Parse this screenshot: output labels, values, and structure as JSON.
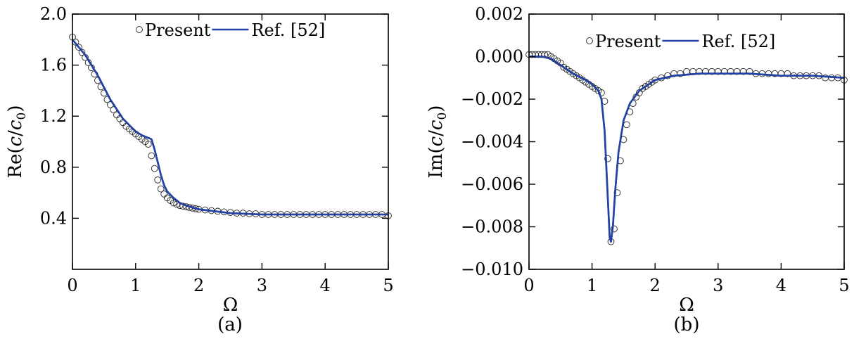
{
  "chart_data": [
    {
      "type": "line",
      "panel_label": "(a)",
      "xlabel": "Ω",
      "ylabel": "Re(c/c0)",
      "ylabel_parts": {
        "pre": "Re(",
        "var": "c",
        "slash": "/",
        "base": "c",
        "sub": "0",
        "post": ")"
      },
      "xlim": [
        0,
        5
      ],
      "ylim": [
        0.0,
        2.0
      ],
      "xticks": [
        0,
        1,
        2,
        3,
        4,
        5
      ],
      "xtick_labels": [
        "0",
        "1",
        "2",
        "3",
        "4",
        "5"
      ],
      "yticks": [
        0.4,
        0.8,
        1.2,
        1.6,
        2.0
      ],
      "ytick_labels": [
        "0.4",
        "0.8",
        "1.2",
        "1.6",
        "2.0"
      ],
      "legend_position": "top-right",
      "series": [
        {
          "name": "Present",
          "style": "open-circle-markers",
          "color": "#222222",
          "x": [
            0,
            0.05,
            0.1,
            0.15,
            0.2,
            0.25,
            0.3,
            0.35,
            0.4,
            0.45,
            0.5,
            0.55,
            0.6,
            0.65,
            0.7,
            0.75,
            0.8,
            0.85,
            0.9,
            0.95,
            1.0,
            1.05,
            1.1,
            1.15,
            1.2,
            1.25,
            1.3,
            1.35,
            1.4,
            1.45,
            1.5,
            1.55,
            1.6,
            1.65,
            1.7,
            1.75,
            1.8,
            1.85,
            1.9,
            1.95,
            2.0,
            2.1,
            2.2,
            2.3,
            2.4,
            2.5,
            2.6,
            2.7,
            2.8,
            2.9,
            3.0,
            3.1,
            3.2,
            3.3,
            3.4,
            3.5,
            3.6,
            3.7,
            3.8,
            3.9,
            4.0,
            4.1,
            4.2,
            4.3,
            4.4,
            4.5,
            4.6,
            4.7,
            4.8,
            4.9,
            5.0
          ],
          "y": [
            1.82,
            1.78,
            1.74,
            1.7,
            1.66,
            1.62,
            1.58,
            1.53,
            1.48,
            1.43,
            1.38,
            1.33,
            1.29,
            1.25,
            1.21,
            1.18,
            1.15,
            1.12,
            1.1,
            1.08,
            1.06,
            1.04,
            1.02,
            1.0,
            0.98,
            0.89,
            0.79,
            0.7,
            0.63,
            0.59,
            0.56,
            0.54,
            0.52,
            0.51,
            0.5,
            0.495,
            0.49,
            0.485,
            0.48,
            0.475,
            0.47,
            0.465,
            0.46,
            0.455,
            0.45,
            0.445,
            0.44,
            0.44,
            0.435,
            0.435,
            0.43,
            0.43,
            0.43,
            0.43,
            0.43,
            0.43,
            0.43,
            0.43,
            0.43,
            0.43,
            0.43,
            0.43,
            0.43,
            0.43,
            0.43,
            0.43,
            0.43,
            0.43,
            0.43,
            0.43,
            0.42
          ]
        },
        {
          "name": "Ref. [52]",
          "style": "solid-line",
          "color": "#2342a8",
          "x": [
            0,
            0.2,
            0.4,
            0.6,
            0.8,
            1.0,
            1.1,
            1.2,
            1.25,
            1.3,
            1.35,
            1.4,
            1.45,
            1.5,
            1.6,
            1.7,
            1.8,
            2.0,
            2.5,
            3.0,
            3.5,
            4.0,
            4.5,
            5.0
          ],
          "y": [
            1.8,
            1.68,
            1.52,
            1.33,
            1.18,
            1.08,
            1.05,
            1.03,
            1.02,
            0.94,
            0.84,
            0.74,
            0.66,
            0.61,
            0.56,
            0.52,
            0.5,
            0.47,
            0.44,
            0.43,
            0.43,
            0.43,
            0.43,
            0.43
          ]
        }
      ]
    },
    {
      "type": "line",
      "panel_label": "(b)",
      "xlabel": "Ω",
      "ylabel": "Im(c/c0)",
      "ylabel_parts": {
        "pre": "Im(",
        "var": "c",
        "slash": "/",
        "base": "c",
        "sub": "0",
        "post": ")"
      },
      "xlim": [
        0,
        5
      ],
      "ylim": [
        -0.01,
        0.002
      ],
      "xticks": [
        0,
        1,
        2,
        3,
        4,
        5
      ],
      "xtick_labels": [
        "0",
        "1",
        "2",
        "3",
        "4",
        "5"
      ],
      "yticks": [
        -0.01,
        -0.008,
        -0.006,
        -0.004,
        -0.002,
        0.0,
        0.002
      ],
      "ytick_labels": [
        "−0.010",
        "−0.008",
        "−0.006",
        "−0.004",
        "−0.002",
        "0.000",
        "0.002"
      ],
      "legend_position": "top-right",
      "series": [
        {
          "name": "Present",
          "style": "open-circle-markers",
          "color": "#222222",
          "x": [
            0,
            0.05,
            0.1,
            0.15,
            0.2,
            0.25,
            0.3,
            0.35,
            0.4,
            0.45,
            0.5,
            0.55,
            0.6,
            0.65,
            0.7,
            0.75,
            0.8,
            0.85,
            0.9,
            0.95,
            1.0,
            1.05,
            1.1,
            1.15,
            1.2,
            1.25,
            1.3,
            1.35,
            1.4,
            1.45,
            1.5,
            1.55,
            1.6,
            1.65,
            1.7,
            1.75,
            1.8,
            1.85,
            1.9,
            1.95,
            2.0,
            2.1,
            2.2,
            2.3,
            2.4,
            2.5,
            2.6,
            2.7,
            2.8,
            2.9,
            3.0,
            3.1,
            3.2,
            3.3,
            3.4,
            3.5,
            3.6,
            3.7,
            3.8,
            3.9,
            4.0,
            4.1,
            4.2,
            4.3,
            4.4,
            4.5,
            4.6,
            4.7,
            4.8,
            4.9,
            5.0
          ],
          "y": [
            0.0001,
            0.0001,
            0.0001,
            0.0001,
            0.0001,
            0.0001,
            0.0001,
            0.0,
            -0.0001,
            -0.0002,
            -0.0003,
            -0.0005,
            -0.0006,
            -0.0007,
            -0.0008,
            -0.0009,
            -0.001,
            -0.0011,
            -0.0012,
            -0.0013,
            -0.0014,
            -0.0015,
            -0.0016,
            -0.0017,
            -0.0021,
            -0.0048,
            -0.0087,
            -0.0081,
            -0.0064,
            -0.0049,
            -0.0039,
            -0.0032,
            -0.0026,
            -0.0022,
            -0.0019,
            -0.0017,
            -0.0015,
            -0.0014,
            -0.0013,
            -0.0012,
            -0.0011,
            -0.001,
            -0.0009,
            -0.0008,
            -0.0008,
            -0.0007,
            -0.0007,
            -0.0007,
            -0.0007,
            -0.0007,
            -0.0007,
            -0.0007,
            -0.0007,
            -0.0007,
            -0.0007,
            -0.0007,
            -0.0008,
            -0.0008,
            -0.0008,
            -0.0008,
            -0.0008,
            -0.0008,
            -0.0009,
            -0.0009,
            -0.0009,
            -0.0009,
            -0.0009,
            -0.001,
            -0.001,
            -0.001,
            -0.0011
          ]
        },
        {
          "name": "Ref. [52]",
          "style": "solid-line",
          "color": "#2342a8",
          "x": [
            0,
            0.2,
            0.35,
            0.5,
            0.7,
            0.9,
            1.0,
            1.1,
            1.15,
            1.2,
            1.24,
            1.28,
            1.3,
            1.33,
            1.37,
            1.42,
            1.5,
            1.6,
            1.75,
            2.0,
            2.3,
            2.7,
            3.0,
            3.5,
            4.0,
            4.5,
            5.0
          ],
          "y": [
            0.0,
            0.0,
            -0.0001,
            -0.0004,
            -0.0008,
            -0.0011,
            -0.0013,
            -0.0016,
            -0.002,
            -0.0035,
            -0.006,
            -0.0085,
            -0.0087,
            -0.008,
            -0.0062,
            -0.0045,
            -0.003,
            -0.0022,
            -0.0016,
            -0.0011,
            -0.0009,
            -0.0008,
            -0.0008,
            -0.0008,
            -0.0009,
            -0.0009,
            -0.001
          ]
        }
      ]
    }
  ]
}
